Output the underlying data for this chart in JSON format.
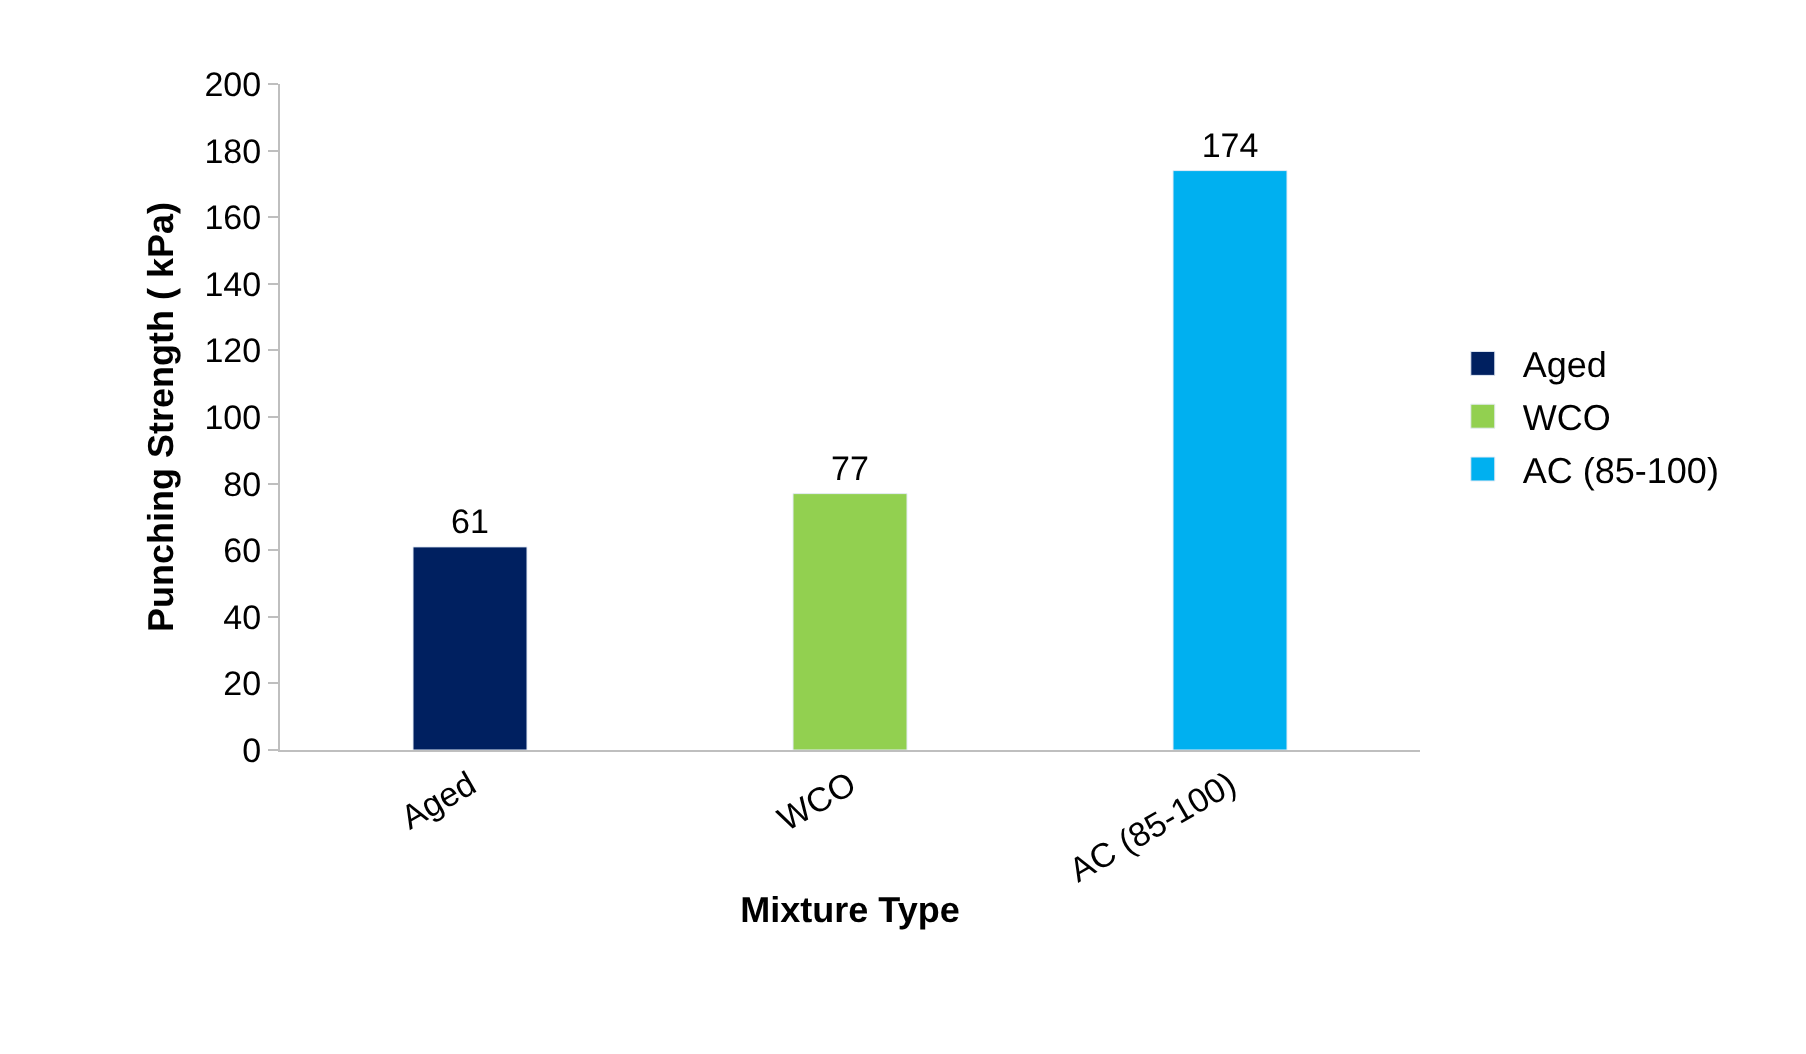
{
  "chart_data": {
    "type": "bar",
    "xlabel": "Mixture Type",
    "ylabel": "Punching Strength ( kPa)",
    "categories": [
      "Aged",
      "WCO",
      "AC (85-100)"
    ],
    "series": [
      {
        "name": "Aged",
        "color": "#002060",
        "values": [
          61,
          null,
          null
        ]
      },
      {
        "name": "WCO",
        "color": "#92d050",
        "values": [
          null,
          77,
          null
        ]
      },
      {
        "name": "AC (85-100)",
        "color": "#00b0f0",
        "values": [
          null,
          null,
          174
        ]
      }
    ],
    "ylim": [
      0,
      200
    ],
    "yticks": [
      0,
      20,
      40,
      60,
      80,
      100,
      120,
      140,
      160,
      180,
      200
    ],
    "data_labels": true,
    "legend": "right"
  }
}
